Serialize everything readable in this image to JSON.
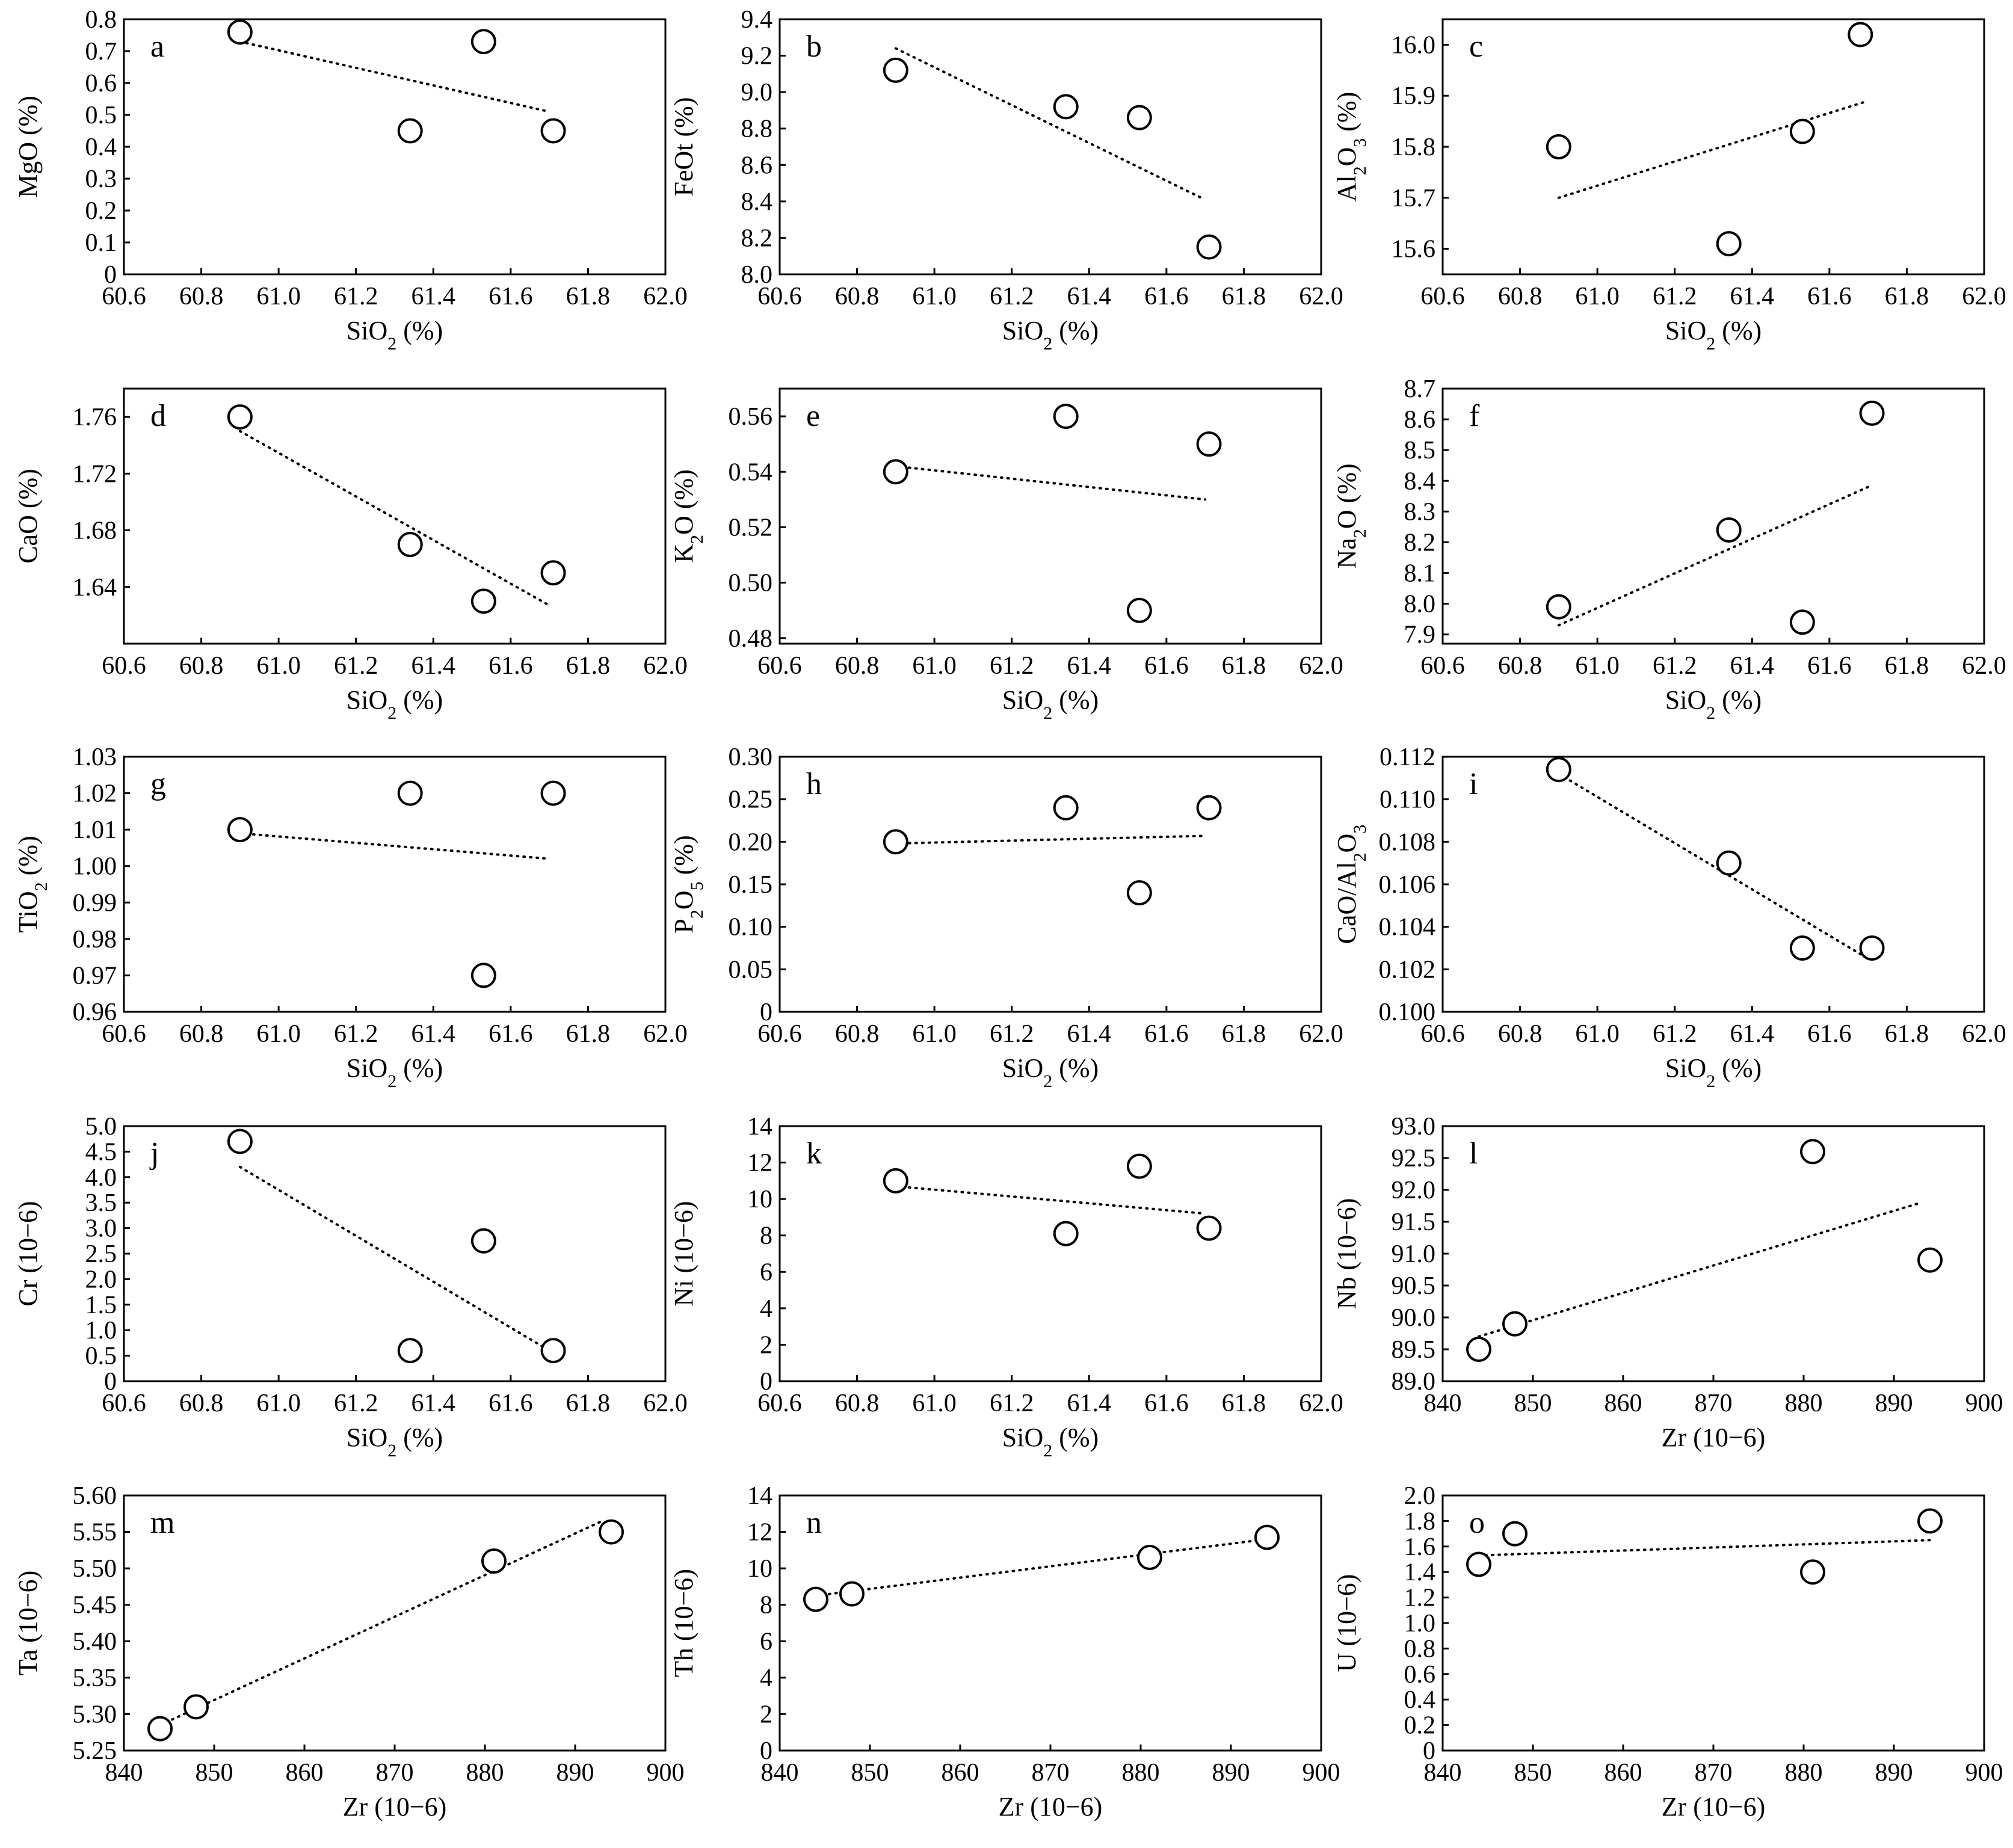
{
  "chart_data": [
    {
      "panel": "a",
      "type": "scatter",
      "xlabel": "SiO2 (%)",
      "ylabel": "MgO (%)",
      "xlim": [
        60.6,
        62.0
      ],
      "ylim": [
        0,
        0.8
      ],
      "xticks": [
        "60.6",
        "60.8",
        "61.0",
        "61.2",
        "61.4",
        "61.6",
        "61.8",
        "62.0"
      ],
      "yticks": [
        "0",
        "0.1",
        "0.2",
        "0.3",
        "0.4",
        "0.5",
        "0.6",
        "0.7",
        "0.8"
      ],
      "points": [
        [
          60.9,
          0.76
        ],
        [
          61.34,
          0.45
        ],
        [
          61.53,
          0.73
        ],
        [
          61.71,
          0.45
        ]
      ],
      "trend": [
        [
          60.9,
          0.73
        ],
        [
          61.7,
          0.51
        ]
      ]
    },
    {
      "panel": "b",
      "type": "scatter",
      "xlabel": "SiO2 (%)",
      "ylabel": "FeOt (%)",
      "xlim": [
        60.6,
        62.0
      ],
      "ylim": [
        8.0,
        9.4
      ],
      "xticks": [
        "60.6",
        "60.8",
        "61.0",
        "61.2",
        "61.4",
        "61.6",
        "61.8",
        "62.0"
      ],
      "yticks": [
        "8.0",
        "8.2",
        "8.4",
        "8.6",
        "8.8",
        "9.0",
        "9.2",
        "9.4"
      ],
      "points": [
        [
          60.9,
          9.12
        ],
        [
          61.34,
          8.92
        ],
        [
          61.53,
          8.86
        ],
        [
          61.71,
          8.15
        ]
      ],
      "trend": [
        [
          60.9,
          9.24
        ],
        [
          61.69,
          8.42
        ]
      ]
    },
    {
      "panel": "c",
      "type": "scatter",
      "xlabel": "SiO2 (%)",
      "ylabel": "Al2O3 (%)",
      "xlim": [
        60.6,
        62.0
      ],
      "ylim": [
        15.55,
        16.05
      ],
      "xticks": [
        "60.6",
        "60.8",
        "61.0",
        "61.2",
        "61.4",
        "61.6",
        "61.8",
        "62.0"
      ],
      "yticks": [
        "15.6",
        "15.7",
        "15.8",
        "15.9",
        "16.0"
      ],
      "points": [
        [
          60.9,
          15.8
        ],
        [
          61.34,
          15.61
        ],
        [
          61.53,
          15.83
        ],
        [
          61.68,
          16.02
        ]
      ],
      "trend": [
        [
          60.9,
          15.7
        ],
        [
          61.7,
          15.89
        ]
      ]
    },
    {
      "panel": "d",
      "type": "scatter",
      "xlabel": "SiO2 (%)",
      "ylabel": "CaO (%)",
      "xlim": [
        60.6,
        62.0
      ],
      "ylim": [
        1.6,
        1.78
      ],
      "xticks": [
        "60.6",
        "60.8",
        "61.0",
        "61.2",
        "61.4",
        "61.6",
        "61.8",
        "62.0"
      ],
      "yticks": [
        "1.64",
        "1.68",
        "1.72",
        "1.76"
      ],
      "points": [
        [
          60.9,
          1.76
        ],
        [
          61.34,
          1.67
        ],
        [
          61.53,
          1.63
        ],
        [
          61.71,
          1.65
        ]
      ],
      "trend": [
        [
          60.9,
          1.75
        ],
        [
          61.7,
          1.627
        ]
      ]
    },
    {
      "panel": "e",
      "type": "scatter",
      "xlabel": "SiO2 (%)",
      "ylabel": "K2O (%)",
      "xlim": [
        60.6,
        62.0
      ],
      "ylim": [
        0.478,
        0.57
      ],
      "xticks": [
        "60.6",
        "60.8",
        "61.0",
        "61.2",
        "61.4",
        "61.6",
        "61.8",
        "62.0"
      ],
      "yticks": [
        "0.48",
        "0.50",
        "0.52",
        "0.54",
        "0.56"
      ],
      "points": [
        [
          60.9,
          0.54
        ],
        [
          61.34,
          0.56
        ],
        [
          61.53,
          0.49
        ],
        [
          61.71,
          0.55
        ]
      ],
      "trend": [
        [
          60.9,
          0.542
        ],
        [
          61.7,
          0.53
        ]
      ]
    },
    {
      "panel": "f",
      "type": "scatter",
      "xlabel": "SiO2 (%)",
      "ylabel": "Na2O (%)",
      "xlim": [
        60.6,
        62.0
      ],
      "ylim": [
        7.87,
        8.7
      ],
      "xticks": [
        "60.6",
        "60.8",
        "61.0",
        "61.2",
        "61.4",
        "61.6",
        "61.8",
        "62.0"
      ],
      "yticks": [
        "7.9",
        "8.0",
        "8.1",
        "8.2",
        "8.3",
        "8.4",
        "8.5",
        "8.6",
        "8.7"
      ],
      "points": [
        [
          60.9,
          7.99
        ],
        [
          61.34,
          8.24
        ],
        [
          61.53,
          7.94
        ],
        [
          61.71,
          8.62
        ]
      ],
      "trend": [
        [
          60.9,
          7.93
        ],
        [
          61.7,
          8.38
        ]
      ]
    },
    {
      "panel": "g",
      "type": "scatter",
      "xlabel": "SiO2 (%)",
      "ylabel": "TiO2 (%)",
      "xlim": [
        60.6,
        62.0
      ],
      "ylim": [
        0.96,
        1.03
      ],
      "xticks": [
        "60.6",
        "60.8",
        "61.0",
        "61.2",
        "61.4",
        "61.6",
        "61.8",
        "62.0"
      ],
      "yticks": [
        "0.96",
        "0.97",
        "0.98",
        "0.99",
        "1.00",
        "1.01",
        "1.02",
        "1.03"
      ],
      "points": [
        [
          60.9,
          1.01
        ],
        [
          61.34,
          1.02
        ],
        [
          61.53,
          0.97
        ],
        [
          61.71,
          1.02
        ]
      ],
      "trend": [
        [
          60.9,
          1.009
        ],
        [
          61.7,
          1.002
        ]
      ]
    },
    {
      "panel": "h",
      "type": "scatter",
      "xlabel": "SiO2 (%)",
      "ylabel": "P2O5 (%)",
      "xlim": [
        60.6,
        62.0
      ],
      "ylim": [
        0,
        0.3
      ],
      "xticks": [
        "60.6",
        "60.8",
        "61.0",
        "61.2",
        "61.4",
        "61.6",
        "61.8",
        "62.0"
      ],
      "yticks": [
        "0",
        "0.05",
        "0.10",
        "0.15",
        "0.20",
        "0.25",
        "0.30"
      ],
      "points": [
        [
          60.9,
          0.2
        ],
        [
          61.34,
          0.24
        ],
        [
          61.53,
          0.14
        ],
        [
          61.71,
          0.24
        ]
      ],
      "trend": [
        [
          60.9,
          0.198
        ],
        [
          61.7,
          0.207
        ]
      ]
    },
    {
      "panel": "i",
      "type": "scatter",
      "xlabel": "SiO2 (%)",
      "ylabel": "CaO/Al2O3",
      "xlim": [
        60.6,
        62.0
      ],
      "ylim": [
        0.1,
        0.112
      ],
      "xticks": [
        "60.6",
        "60.8",
        "61.0",
        "61.2",
        "61.4",
        "61.6",
        "61.8",
        "62.0"
      ],
      "yticks": [
        "0.100",
        "0.102",
        "0.104",
        "0.106",
        "0.108",
        "0.110",
        "0.112"
      ],
      "points": [
        [
          60.9,
          0.1114
        ],
        [
          61.34,
          0.107
        ],
        [
          61.53,
          0.103
        ],
        [
          61.71,
          0.103
        ]
      ],
      "trend": [
        [
          60.9,
          0.1112
        ],
        [
          61.7,
          0.1025
        ]
      ]
    },
    {
      "panel": "j",
      "type": "scatter",
      "xlabel": "SiO2 (%)",
      "ylabel": "Cr (10−6)",
      "xlim": [
        60.6,
        62.0
      ],
      "ylim": [
        0,
        5.0
      ],
      "xticks": [
        "60.6",
        "60.8",
        "61.0",
        "61.2",
        "61.4",
        "61.6",
        "61.8",
        "62.0"
      ],
      "yticks": [
        "0",
        "0.5",
        "1.0",
        "1.5",
        "2.0",
        "2.5",
        "3.0",
        "3.5",
        "4.0",
        "4.5",
        "5.0"
      ],
      "points": [
        [
          60.9,
          4.7
        ],
        [
          61.34,
          0.6
        ],
        [
          61.53,
          2.75
        ],
        [
          61.71,
          0.6
        ]
      ],
      "trend": [
        [
          60.9,
          4.2
        ],
        [
          61.7,
          0.6
        ]
      ]
    },
    {
      "panel": "k",
      "type": "scatter",
      "xlabel": "SiO2 (%)",
      "ylabel": "Ni (10−6)",
      "xlim": [
        60.6,
        62.0
      ],
      "ylim": [
        0,
        14
      ],
      "xticks": [
        "60.6",
        "60.8",
        "61.0",
        "61.2",
        "61.4",
        "61.6",
        "61.8",
        "62.0"
      ],
      "yticks": [
        "0",
        "2",
        "4",
        "6",
        "8",
        "10",
        "12",
        "14"
      ],
      "points": [
        [
          60.9,
          11.0
        ],
        [
          61.34,
          8.1
        ],
        [
          61.53,
          11.8
        ],
        [
          61.71,
          8.4
        ]
      ],
      "trend": [
        [
          60.9,
          10.7
        ],
        [
          61.7,
          9.2
        ]
      ]
    },
    {
      "panel": "l",
      "type": "scatter",
      "xlabel": "Zr (10−6)",
      "ylabel": "Nb (10−6)",
      "xlim": [
        840,
        900
      ],
      "ylim": [
        89.0,
        93.0
      ],
      "xticks": [
        "840",
        "850",
        "860",
        "870",
        "880",
        "890",
        "900"
      ],
      "yticks": [
        "89.0",
        "89.5",
        "90.0",
        "90.5",
        "91.0",
        "91.5",
        "92.0",
        "92.5",
        "93.0"
      ],
      "points": [
        [
          844,
          89.5
        ],
        [
          848,
          89.9
        ],
        [
          881,
          92.6
        ],
        [
          894,
          90.9
        ]
      ],
      "trend": [
        [
          844,
          89.7
        ],
        [
          893,
          91.8
        ]
      ]
    },
    {
      "panel": "m",
      "type": "scatter",
      "xlabel": "Zr (10−6)",
      "ylabel": "Ta (10−6)",
      "xlim": [
        840,
        900
      ],
      "ylim": [
        5.25,
        5.6
      ],
      "xticks": [
        "840",
        "850",
        "860",
        "870",
        "880",
        "890",
        "900"
      ],
      "yticks": [
        "5.25",
        "5.30",
        "5.35",
        "5.40",
        "5.45",
        "5.50",
        "5.55",
        "5.60"
      ],
      "points": [
        [
          844,
          5.28
        ],
        [
          848,
          5.31
        ],
        [
          881,
          5.51
        ],
        [
          894,
          5.55
        ]
      ],
      "trend": [
        [
          844,
          5.285
        ],
        [
          893,
          5.565
        ]
      ]
    },
    {
      "panel": "n",
      "type": "scatter",
      "xlabel": "Zr (10−6)",
      "ylabel": "Th (10−6)",
      "xlim": [
        840,
        900
      ],
      "ylim": [
        0,
        14
      ],
      "xticks": [
        "840",
        "850",
        "860",
        "870",
        "880",
        "890",
        "900"
      ],
      "yticks": [
        "0",
        "2",
        "4",
        "6",
        "8",
        "10",
        "12",
        "14"
      ],
      "points": [
        [
          844,
          8.3
        ],
        [
          848,
          8.6
        ],
        [
          881,
          10.6
        ],
        [
          894,
          11.7
        ]
      ],
      "trend": [
        [
          844,
          8.5
        ],
        [
          894,
          11.6
        ]
      ]
    },
    {
      "panel": "o",
      "type": "scatter",
      "xlabel": "Zr (10−6)",
      "ylabel": "U (10−6)",
      "xlim": [
        840,
        900
      ],
      "ylim": [
        0,
        2.0
      ],
      "xticks": [
        "840",
        "850",
        "860",
        "870",
        "880",
        "890",
        "900"
      ],
      "yticks": [
        "0",
        "0.2",
        "0.4",
        "0.6",
        "0.8",
        "1.0",
        "1.2",
        "1.4",
        "1.6",
        "1.8",
        "2.0"
      ],
      "points": [
        [
          844,
          1.46
        ],
        [
          848,
          1.7
        ],
        [
          881,
          1.4
        ],
        [
          894,
          1.8
        ]
      ],
      "trend": [
        [
          844,
          1.53
        ],
        [
          894,
          1.65
        ]
      ]
    }
  ]
}
